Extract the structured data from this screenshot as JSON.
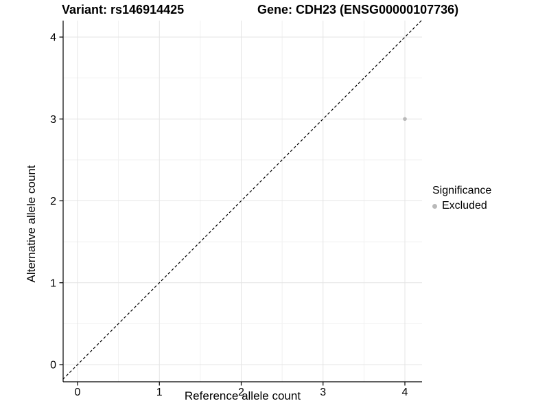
{
  "chart_data": {
    "type": "scatter",
    "title_left": "Variant: rs146914425",
    "title_right": "Gene: CDH23 (ENSG00000107736)",
    "xlabel": "Reference allele count",
    "ylabel": "Alternative allele count",
    "xlim": [
      -0.18,
      4.22
    ],
    "ylim": [
      -0.2,
      4.21
    ],
    "x_ticks": [
      0,
      1,
      2,
      3,
      4
    ],
    "y_ticks": [
      0,
      1,
      2,
      3,
      4
    ],
    "minor_gridlines": [
      0.5,
      1.5,
      2.5,
      3.5
    ],
    "grid": "on",
    "points": [
      {
        "x": 4,
        "y": 3,
        "significance": "Excluded",
        "color": "#b9b9b9"
      }
    ],
    "reference_line": {
      "equation": "y = x",
      "style": "dashed",
      "color": "#000000"
    },
    "legend": {
      "title": "Significance",
      "position": "right",
      "entries": [
        {
          "label": "Excluded",
          "color": "#b9b9b9"
        }
      ]
    },
    "style_colors": {
      "major_grid": "#e4e4e4",
      "minor_grid": "#f1f1f1",
      "axis_line": "#000000",
      "tick_text": "#000000"
    }
  }
}
